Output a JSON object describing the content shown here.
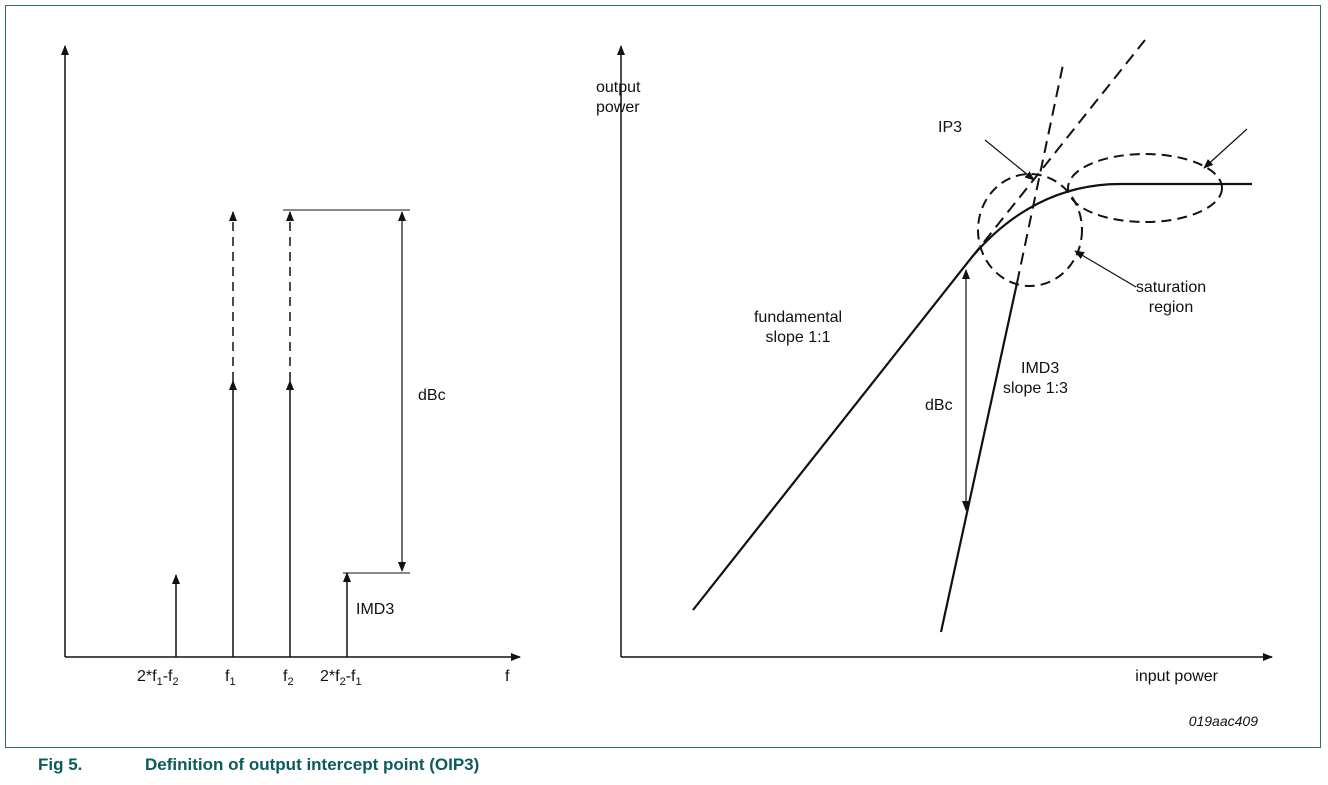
{
  "figure": {
    "id": "019aac409",
    "caption_number": "Fig 5.",
    "caption_title": "Definition of output intercept point (OIP3)"
  },
  "left_panel": {
    "x_axis_label": "f",
    "tick_labels": {
      "imd_low": {
        "base": "2*f",
        "sub1": "1",
        "mid": "-f",
        "sub2": "2"
      },
      "f1": {
        "base": "f",
        "sub": "1"
      },
      "f2": {
        "base": "f",
        "sub": "2"
      },
      "imd_high": {
        "base": "2*f",
        "sub1": "2",
        "mid": "-f",
        "sub2": "1"
      }
    },
    "dbc_label": "dBc",
    "imd3_label": "IMD3"
  },
  "right_panel": {
    "y_axis_label_line1": "output",
    "y_axis_label_line2": "power",
    "x_axis_label": "input power",
    "ip3_label": "IP3",
    "fundamental_line1": "fundamental",
    "fundamental_line2": "slope 1:1",
    "imd3_line1": "IMD3",
    "imd3_line2": "slope 1:3",
    "dbc_label": "dBc",
    "saturation_line1": "saturation",
    "saturation_line2": "region"
  },
  "colors": {
    "line": "#111111",
    "caption": "#0a5c5c",
    "frame": "#2f6b6b"
  }
}
